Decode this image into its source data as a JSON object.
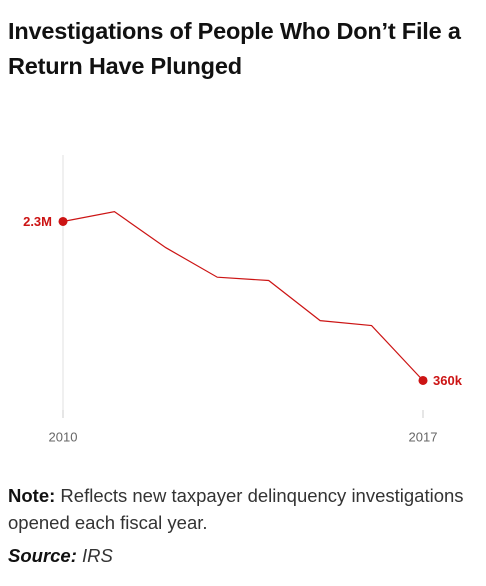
{
  "title": "Investigations of People Who Don’t File a Return Have Plunged",
  "chart_data": {
    "type": "line",
    "x": [
      2010,
      2011,
      2012,
      2013,
      2014,
      2015,
      2016,
      2017
    ],
    "values": [
      2300000,
      2420000,
      1980000,
      1620000,
      1580000,
      1090000,
      1030000,
      360000
    ],
    "value_labels": [
      "2.3M",
      null,
      null,
      null,
      null,
      null,
      null,
      "360k"
    ],
    "color": "#cc1414",
    "xlim": [
      2010,
      2017
    ],
    "xticks": [
      2010,
      2017
    ],
    "ylim": [
      0,
      3050000
    ]
  },
  "note_label": "Note:",
  "note": "Reflects new taxpayer delinquency investigations opened each fiscal year.",
  "source_label": "Source:",
  "source": "IRS"
}
